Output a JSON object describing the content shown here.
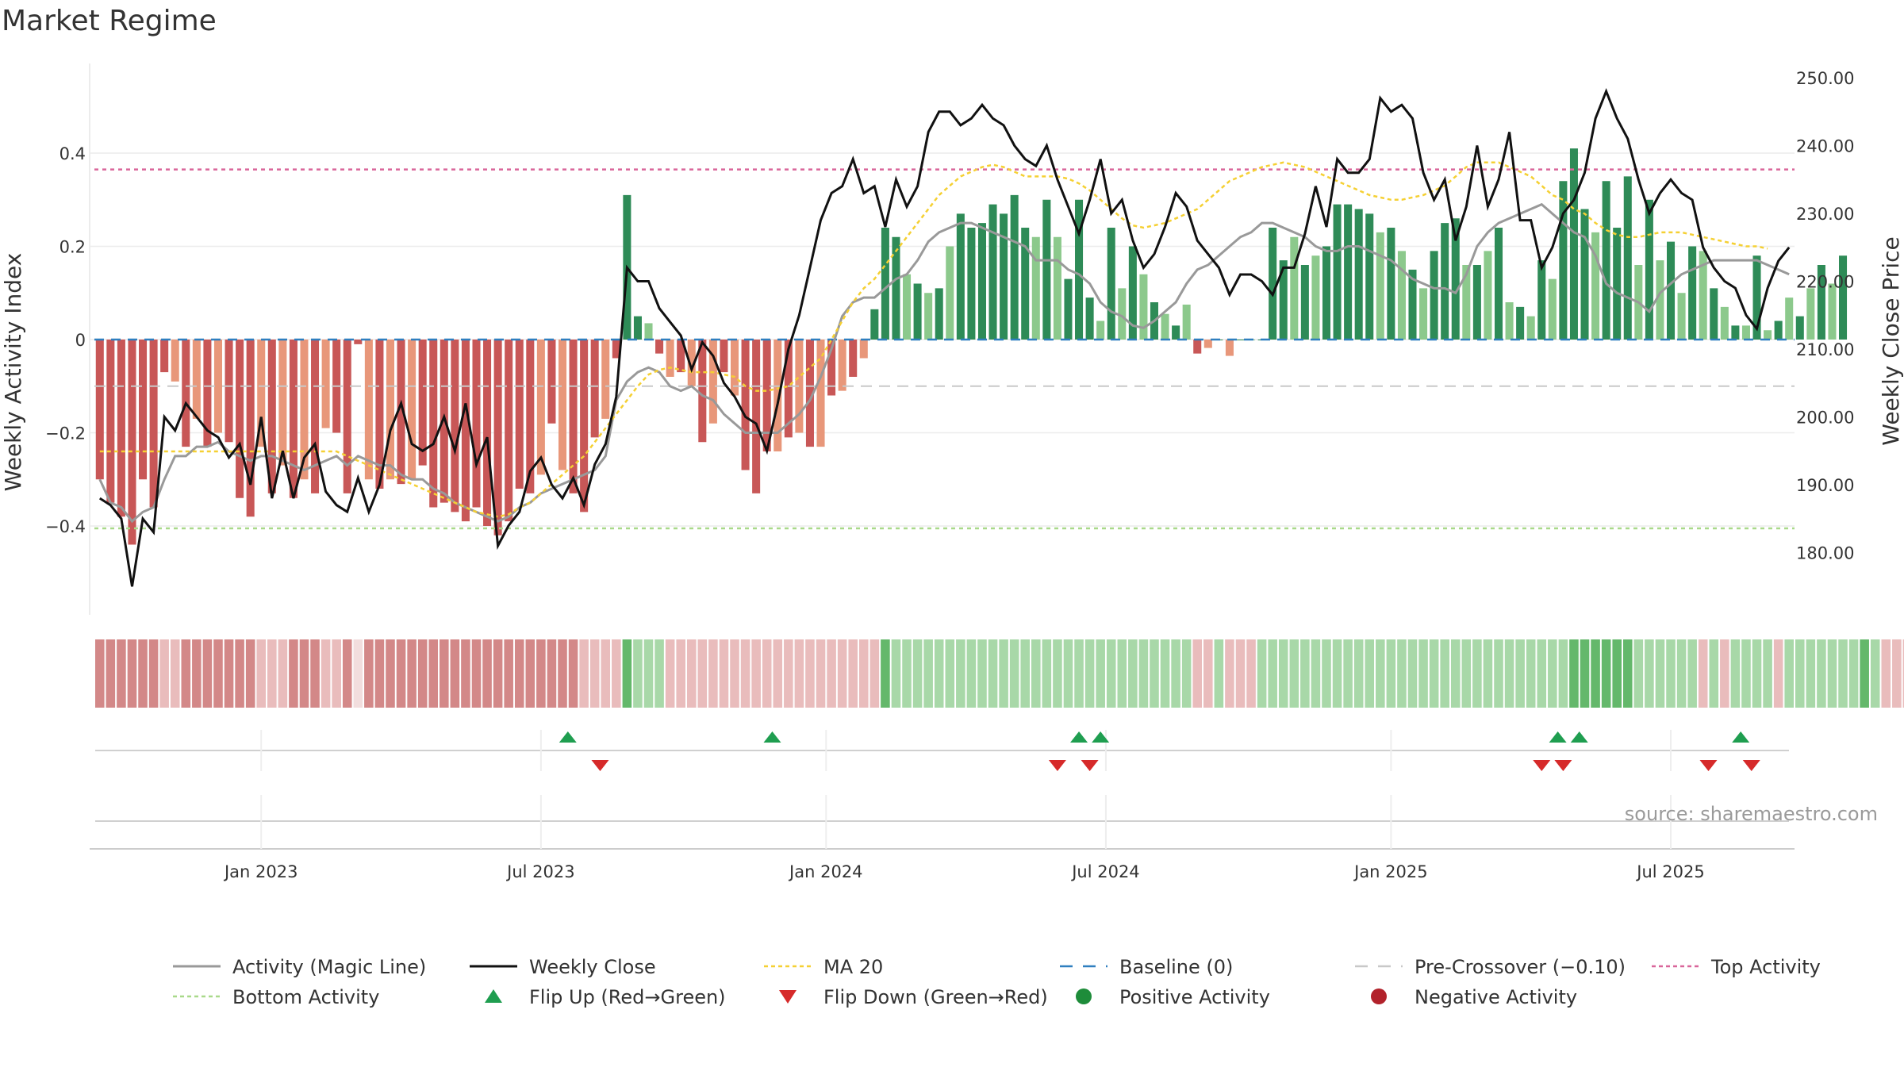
{
  "title": "Market Regime",
  "source": "source: sharemaestro.com",
  "colors": {
    "pos_strong": "#2e8b57",
    "pos_light": "#8cc98c",
    "neg_strong": "#c85757",
    "neg_light": "#e8977a",
    "magic_line": "#999999",
    "close_line": "#111111",
    "ma20": "#f5d033",
    "baseline": "#2f7fbf",
    "pre_crossover": "#c8c8c8",
    "top_activity": "#d9669a",
    "bottom_activity": "#a9d98a",
    "flip_up": "#1f9e50",
    "flip_down": "#d62a2a",
    "positive_marker": "#1e8c3a",
    "negative_marker": "#b2222b"
  },
  "chart_data": {
    "type": "bar",
    "y_left_label": "Weekly Activity Index",
    "y_right_label": "Weekly Close Price",
    "y_left_ticks": [
      "0.4",
      "0.2",
      "0",
      "−0.2",
      "−0.4"
    ],
    "y_left_tick_values": [
      0.4,
      0.2,
      0,
      -0.2,
      -0.4
    ],
    "y_right_ticks": [
      "250.00",
      "240.00",
      "230.00",
      "220.00",
      "210.00",
      "200.00",
      "190.00",
      "180.00"
    ],
    "y_right_tick_values": [
      250,
      240,
      230,
      220,
      210,
      200,
      190,
      180
    ],
    "ylim_left": [
      -0.6,
      0.6
    ],
    "ylim_right": [
      171,
      254
    ],
    "x_ticks": [
      "Jan 2023",
      "Jul 2023",
      "Jan 2024",
      "Jul 2024",
      "Jan 2025",
      "Jul 2025"
    ],
    "x_tick_weeks": [
      15,
      41,
      67.5,
      93.5,
      120,
      146
    ],
    "weeks": 158,
    "top_activity": 0.365,
    "bottom_activity": -0.405,
    "pre_crossover": -0.1,
    "baseline": 0,
    "activity": [
      -0.3,
      -0.35,
      -0.38,
      -0.44,
      -0.3,
      -0.36,
      -0.07,
      -0.09,
      -0.23,
      -0.17,
      -0.23,
      -0.2,
      -0.22,
      -0.34,
      -0.38,
      -0.23,
      -0.33,
      -0.27,
      -0.34,
      -0.3,
      -0.33,
      -0.19,
      -0.2,
      -0.33,
      -0.01,
      -0.3,
      -0.32,
      -0.3,
      -0.31,
      -0.3,
      -0.27,
      -0.36,
      -0.35,
      -0.37,
      -0.39,
      -0.36,
      -0.4,
      -0.42,
      -0.39,
      -0.32,
      -0.33,
      -0.29,
      -0.18,
      -0.28,
      -0.33,
      -0.37,
      -0.21,
      -0.17,
      -0.04,
      0.31,
      0.05,
      0.035,
      -0.03,
      -0.08,
      -0.07,
      -0.1,
      -0.22,
      -0.18,
      -0.07,
      -0.12,
      -0.28,
      -0.33,
      -0.24,
      -0.24,
      -0.21,
      -0.2,
      -0.23,
      -0.23,
      -0.12,
      -0.11,
      -0.08,
      -0.04,
      0.065,
      0.24,
      0.22,
      0.14,
      0.12,
      0.1,
      0.11,
      0.2,
      0.27,
      0.24,
      0.25,
      0.29,
      0.27,
      0.31,
      0.24,
      0.22,
      0.3,
      0.22,
      0.13,
      0.3,
      0.09,
      0.04,
      0.24,
      0.11,
      0.2,
      0.14,
      0.08,
      0.055,
      0.03,
      0.075,
      -0.03,
      -0.018,
      0.0,
      -0.035,
      0.0,
      0.0,
      0.0,
      0.24,
      0.17,
      0.22,
      0.16,
      0.18,
      0.2,
      0.29,
      0.29,
      0.28,
      0.27,
      0.23,
      0.24,
      0.19,
      0.15,
      0.11,
      0.19,
      0.25,
      0.26,
      0.16,
      0.16,
      0.19,
      0.24,
      0.08,
      0.07,
      0.05,
      0.17,
      0.13,
      0.34,
      0.41,
      0.28,
      0.23,
      0.34,
      0.24,
      0.35,
      0.16,
      0.3,
      0.17,
      0.21,
      0.1,
      0.2,
      0.19,
      0.11,
      0.07,
      0.03,
      0.03,
      0.18,
      0.02,
      0.04,
      0.09,
      0.05,
      0.11,
      0.16,
      0.12,
      0.18
    ],
    "magic_line": [
      -0.3,
      -0.35,
      -0.36,
      -0.39,
      -0.37,
      -0.36,
      -0.3,
      -0.25,
      -0.25,
      -0.23,
      -0.23,
      -0.22,
      -0.24,
      -0.25,
      -0.26,
      -0.25,
      -0.25,
      -0.26,
      -0.27,
      -0.28,
      -0.27,
      -0.26,
      -0.25,
      -0.27,
      -0.25,
      -0.26,
      -0.27,
      -0.27,
      -0.29,
      -0.3,
      -0.3,
      -0.32,
      -0.33,
      -0.35,
      -0.36,
      -0.37,
      -0.38,
      -0.39,
      -0.38,
      -0.36,
      -0.35,
      -0.33,
      -0.32,
      -0.31,
      -0.3,
      -0.29,
      -0.28,
      -0.25,
      -0.13,
      -0.09,
      -0.07,
      -0.06,
      -0.07,
      -0.1,
      -0.11,
      -0.1,
      -0.12,
      -0.13,
      -0.16,
      -0.18,
      -0.2,
      -0.2,
      -0.2,
      -0.2,
      -0.18,
      -0.16,
      -0.13,
      -0.08,
      -0.02,
      0.05,
      0.08,
      0.09,
      0.09,
      0.11,
      0.13,
      0.14,
      0.17,
      0.21,
      0.23,
      0.24,
      0.25,
      0.25,
      0.24,
      0.23,
      0.22,
      0.21,
      0.2,
      0.17,
      0.17,
      0.17,
      0.15,
      0.14,
      0.12,
      0.08,
      0.06,
      0.05,
      0.03,
      0.025,
      0.04,
      0.06,
      0.08,
      0.12,
      0.15,
      0.16,
      0.18,
      0.2,
      0.22,
      0.23,
      0.25,
      0.25,
      0.24,
      0.23,
      0.22,
      0.2,
      0.19,
      0.19,
      0.2,
      0.2,
      0.19,
      0.18,
      0.17,
      0.15,
      0.13,
      0.12,
      0.11,
      0.11,
      0.1,
      0.14,
      0.2,
      0.23,
      0.25,
      0.26,
      0.27,
      0.28,
      0.29,
      0.27,
      0.25,
      0.23,
      0.22,
      0.18,
      0.12,
      0.1,
      0.09,
      0.08,
      0.06,
      0.1,
      0.12,
      0.14,
      0.15,
      0.16,
      0.17,
      0.17,
      0.17,
      0.17,
      0.17,
      0.16,
      0.15,
      0.14
    ],
    "weekly_close": [
      188,
      187,
      185,
      175,
      185,
      183,
      200,
      198,
      202,
      200,
      198,
      197,
      194,
      196,
      190,
      200,
      188,
      195,
      188,
      194,
      196,
      189,
      187,
      186,
      191,
      186,
      190,
      198,
      202,
      196,
      195,
      196,
      200,
      195,
      202,
      193,
      197,
      181,
      184,
      186,
      192,
      194,
      190,
      188,
      191,
      187,
      193,
      196,
      203,
      222,
      220,
      220,
      216,
      214,
      212,
      207,
      211,
      209,
      205,
      203,
      200,
      199,
      195,
      202,
      210,
      215,
      222,
      229,
      233,
      234,
      238,
      233,
      234,
      228,
      235,
      231,
      234,
      242,
      245,
      245,
      243,
      244,
      246,
      244,
      243,
      240,
      238,
      237,
      240,
      235,
      231,
      227,
      232,
      238,
      230,
      232,
      226,
      222,
      224,
      228,
      233,
      231,
      226,
      224,
      222,
      218,
      221,
      221,
      220,
      218,
      222,
      222,
      227,
      234,
      228,
      238,
      236,
      236,
      238,
      247,
      245,
      246,
      244,
      236,
      232,
      235,
      226,
      231,
      240,
      231,
      235,
      242,
      229,
      229,
      222,
      225,
      230,
      232,
      236,
      244,
      248,
      244,
      241,
      235,
      230,
      233,
      235,
      233,
      232,
      225,
      222,
      220,
      219,
      215,
      213,
      219,
      223,
      225
    ],
    "ma20": [
      -0.24,
      -0.24,
      -0.24,
      -0.24,
      -0.24,
      -0.24,
      -0.24,
      -0.24,
      -0.24,
      -0.24,
      -0.24,
      -0.24,
      -0.24,
      -0.24,
      -0.24,
      -0.24,
      -0.24,
      -0.24,
      -0.24,
      -0.24,
      -0.24,
      -0.24,
      -0.24,
      -0.25,
      -0.26,
      -0.27,
      -0.28,
      -0.29,
      -0.3,
      -0.31,
      -0.32,
      -0.33,
      -0.34,
      -0.35,
      -0.36,
      -0.37,
      -0.375,
      -0.38,
      -0.375,
      -0.36,
      -0.35,
      -0.33,
      -0.31,
      -0.29,
      -0.27,
      -0.25,
      -0.22,
      -0.19,
      -0.16,
      -0.13,
      -0.1,
      -0.075,
      -0.065,
      -0.06,
      -0.065,
      -0.07,
      -0.07,
      -0.07,
      -0.075,
      -0.08,
      -0.1,
      -0.11,
      -0.11,
      -0.105,
      -0.1,
      -0.08,
      -0.06,
      -0.04,
      0.0,
      0.04,
      0.08,
      0.11,
      0.13,
      0.16,
      0.19,
      0.22,
      0.25,
      0.28,
      0.31,
      0.33,
      0.35,
      0.36,
      0.37,
      0.375,
      0.37,
      0.36,
      0.35,
      0.35,
      0.35,
      0.35,
      0.345,
      0.335,
      0.32,
      0.3,
      0.28,
      0.26,
      0.245,
      0.24,
      0.245,
      0.25,
      0.26,
      0.27,
      0.28,
      0.3,
      0.32,
      0.34,
      0.35,
      0.36,
      0.37,
      0.375,
      0.38,
      0.375,
      0.37,
      0.36,
      0.35,
      0.34,
      0.33,
      0.32,
      0.31,
      0.305,
      0.3,
      0.3,
      0.305,
      0.31,
      0.32,
      0.33,
      0.35,
      0.37,
      0.38,
      0.38,
      0.38,
      0.37,
      0.36,
      0.35,
      0.33,
      0.31,
      0.3,
      0.28,
      0.27,
      0.25,
      0.235,
      0.225,
      0.22,
      0.22,
      0.225,
      0.23,
      0.23,
      0.23,
      0.225,
      0.22,
      0.215,
      0.21,
      0.205,
      0.2,
      0.2,
      0.195
    ],
    "regime_strip": [
      -2,
      -2,
      -2,
      -2,
      -2,
      -2,
      -1,
      -1,
      -2,
      -2,
      -2,
      -2,
      -2,
      -2,
      -2,
      -1,
      -1,
      -1,
      -2,
      -2,
      -2,
      -1,
      -1,
      -2,
      0,
      -2,
      -2,
      -2,
      -2,
      -2,
      -2,
      -2,
      -2,
      -2,
      -2,
      -2,
      -2,
      -2,
      -2,
      -2,
      -2,
      -2,
      -2,
      -2,
      -2,
      -1,
      -1,
      -1,
      -1,
      2,
      1,
      1,
      1,
      -1,
      -1,
      -1,
      -1,
      -1,
      -1,
      -1,
      -1,
      -1,
      -1,
      -1,
      -1,
      -1,
      -1,
      -1,
      -1,
      -1,
      -1,
      -1,
      -1,
      2,
      1,
      1,
      1,
      1,
      1,
      1,
      1,
      1,
      1,
      1,
      1,
      1,
      1,
      1,
      1,
      1,
      1,
      1,
      1,
      1,
      1,
      1,
      1,
      1,
      1,
      1,
      1,
      1,
      -1,
      -1,
      1,
      -1,
      -1,
      -1,
      1,
      1,
      1,
      1,
      1,
      1,
      1,
      1,
      1,
      1,
      1,
      1,
      1,
      1,
      1,
      1,
      1,
      1,
      1,
      1,
      1,
      1,
      1,
      1,
      1,
      1,
      1,
      1,
      1,
      2,
      2,
      2,
      2,
      2,
      2,
      1,
      1,
      1,
      1,
      1,
      1,
      -1,
      1,
      -1,
      1,
      1,
      1,
      1,
      1,
      1,
      1,
      1,
      1,
      1,
      1,
      1,
      2,
      1,
      -1,
      -1,
      -1,
      -1,
      -1
    ],
    "flip_up_weeks": [
      43.5,
      62.5,
      91,
      93,
      135.5,
      137.5,
      152.5
    ],
    "flip_down_weeks": [
      46.5,
      89,
      92,
      134,
      136,
      149.5,
      153.5
    ],
    "legend": [
      {
        "label": "Activity (Magic Line)",
        "key": "magic_line",
        "style": "line"
      },
      {
        "label": "Weekly Close",
        "key": "close_line",
        "style": "line"
      },
      {
        "label": "MA 20",
        "key": "ma20",
        "style": "dotted"
      },
      {
        "label": "Baseline (0)",
        "key": "baseline",
        "style": "dashed"
      },
      {
        "label": "Pre-Crossover (−0.10)",
        "key": "pre_crossover",
        "style": "dashed"
      },
      {
        "label": "Top Activity",
        "key": "top_activity",
        "style": "dotted"
      },
      {
        "label": "Bottom Activity",
        "key": "bottom_activity",
        "style": "dotted"
      },
      {
        "label": "Flip Up (Red→Green)",
        "key": "flip_up",
        "style": "tri-up"
      },
      {
        "label": "Flip Down (Green→Red)",
        "key": "flip_down",
        "style": "tri-down"
      },
      {
        "label": "Positive Activity",
        "key": "positive_marker",
        "style": "dot"
      },
      {
        "label": "Negative Activity",
        "key": "negative_marker",
        "style": "dot"
      }
    ]
  }
}
